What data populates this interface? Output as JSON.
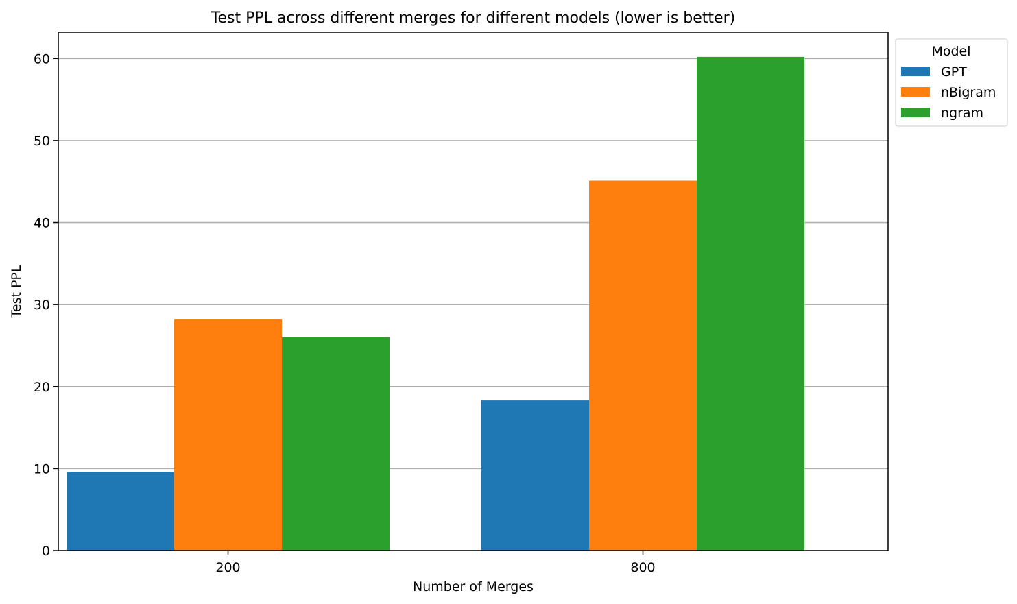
{
  "chart_data": {
    "type": "bar",
    "title": "Test PPL across different merges for different models (lower is better)",
    "xlabel": "Number of Merges",
    "ylabel": "Test PPL",
    "categories": [
      "200",
      "800"
    ],
    "series": [
      {
        "name": "GPT",
        "values": [
          9.6,
          18.3
        ],
        "color": "#1f77b4"
      },
      {
        "name": "nBigram",
        "values": [
          28.2,
          45.1
        ],
        "color": "#ff7f0e"
      },
      {
        "name": "ngram",
        "values": [
          26.0,
          60.2
        ],
        "color": "#2ca02c"
      }
    ],
    "ylim": [
      0,
      63.2
    ],
    "yticks": [
      0,
      10,
      20,
      30,
      40,
      50,
      60
    ],
    "grid": "y",
    "legend": {
      "title": "Model",
      "position": "outside top-right"
    }
  }
}
